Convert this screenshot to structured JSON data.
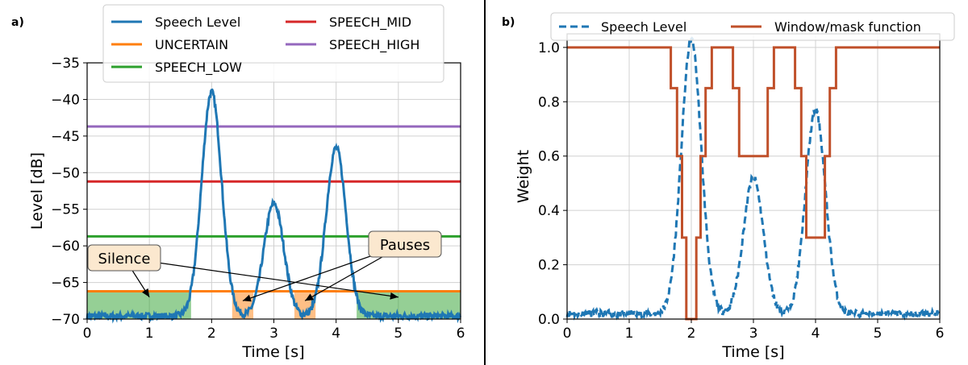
{
  "chart_data": [
    {
      "panel_label": "a)",
      "type": "line",
      "xlabel": "Time [s]",
      "ylabel": "Level [dB]",
      "xlim": [
        0,
        6
      ],
      "ylim": [
        -70,
        -35
      ],
      "x_ticks": [
        0,
        1,
        2,
        3,
        4,
        5,
        6
      ],
      "y_ticks": [
        -70,
        -65,
        -60,
        -55,
        -50,
        -45,
        -40,
        -35
      ],
      "grid": true,
      "legend_position": "top",
      "series": [
        {
          "name": "Speech Level",
          "color": "#1f77b4",
          "style": "solid",
          "baseline": -69.6,
          "peaks": [
            {
              "t": 2.0,
              "value": -39.0,
              "sigma": 0.16
            },
            {
              "t": 3.0,
              "value": -54.2,
              "sigma": 0.16
            },
            {
              "t": 4.0,
              "value": -46.6,
              "sigma": 0.16
            }
          ]
        },
        {
          "name": "UNCERTAIN",
          "color": "#ff7f0e",
          "style": "solid",
          "value": -66.2
        },
        {
          "name": "SPEECH_MID",
          "color": "#d62728",
          "style": "solid",
          "value": -51.2
        },
        {
          "name": "SPEECH_LOW",
          "color": "#2ca02c",
          "style": "solid",
          "value": -58.7
        },
        {
          "name": "SPEECH_HIGH",
          "color": "#9467bd",
          "style": "solid",
          "value": -43.7
        }
      ],
      "regions": [
        {
          "kind": "silence",
          "color": "#2ca02c",
          "x": [
            0.0,
            1.67
          ],
          "y": [
            -70,
            -66.2
          ]
        },
        {
          "kind": "silence",
          "color": "#2ca02c",
          "x": [
            4.33,
            6.0
          ],
          "y": [
            -70,
            -66.2
          ]
        },
        {
          "kind": "pause",
          "color": "#ff7f0e",
          "x": [
            2.33,
            2.67
          ],
          "y": [
            -70,
            -66.2
          ]
        },
        {
          "kind": "pause",
          "color": "#ff7f0e",
          "x": [
            3.33,
            3.67
          ],
          "y": [
            -70,
            -66.2
          ]
        }
      ],
      "annotations": [
        {
          "text": "Silence",
          "targets": [
            [
              1.0,
              -67.0
            ],
            [
              5.0,
              -67.0
            ]
          ]
        },
        {
          "text": "Pauses",
          "targets": [
            [
              2.5,
              -67.5
            ],
            [
              3.5,
              -67.5
            ]
          ]
        }
      ]
    },
    {
      "panel_label": "b)",
      "type": "line",
      "xlabel": "Time [s]",
      "ylabel": "Weight",
      "xlim": [
        0,
        6
      ],
      "ylim": [
        0.0,
        1.05
      ],
      "x_ticks": [
        0,
        1,
        2,
        3,
        4,
        5,
        6
      ],
      "y_ticks": [
        0.0,
        0.2,
        0.4,
        0.6,
        0.8,
        1.0
      ],
      "grid": true,
      "legend_position": "top",
      "series": [
        {
          "name": "Speech Level",
          "color": "#1f77b4",
          "style": "dashed",
          "baseline": 0.02,
          "peaks": [
            {
              "t": 2.0,
              "value": 1.03,
              "sigma": 0.16
            },
            {
              "t": 3.0,
              "value": 0.52,
              "sigma": 0.16
            },
            {
              "t": 4.0,
              "value": 0.77,
              "sigma": 0.16
            }
          ]
        },
        {
          "name": "Window/mask function",
          "color": "#c0502a",
          "style": "solid",
          "steps": [
            [
              0.0,
              1.0
            ],
            [
              1.67,
              0.85
            ],
            [
              1.77,
              0.6
            ],
            [
              1.85,
              0.3
            ],
            [
              1.92,
              0.0
            ],
            [
              2.08,
              0.3
            ],
            [
              2.15,
              0.6
            ],
            [
              2.23,
              0.85
            ],
            [
              2.33,
              1.0
            ],
            [
              2.67,
              0.85
            ],
            [
              2.77,
              0.6
            ],
            [
              3.23,
              0.85
            ],
            [
              3.33,
              1.0
            ],
            [
              3.67,
              0.85
            ],
            [
              3.77,
              0.6
            ],
            [
              3.85,
              0.3
            ],
            [
              4.15,
              0.6
            ],
            [
              4.23,
              0.85
            ],
            [
              4.33,
              1.0
            ],
            [
              6.0,
              1.0
            ]
          ]
        }
      ]
    }
  ]
}
